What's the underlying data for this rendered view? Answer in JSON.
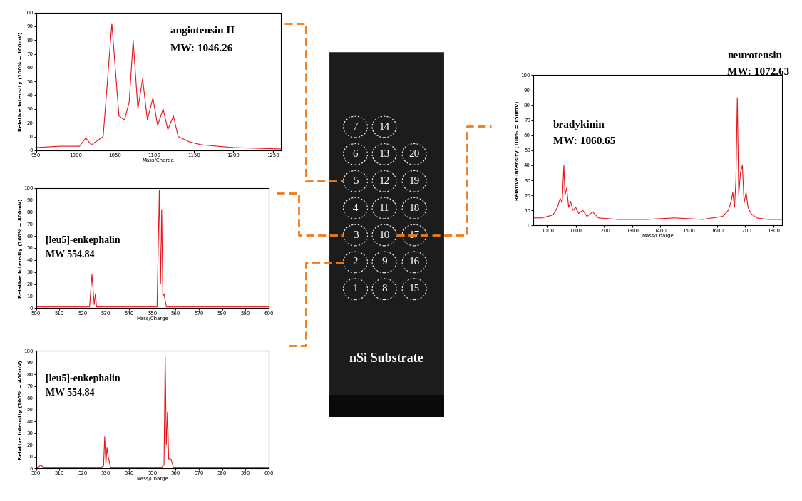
{
  "chart_data": [
    {
      "type": "line",
      "color": "#e8141c",
      "annotations": [
        "angiotensin II",
        "MW: 1046.26"
      ],
      "x_label": "Mass/Charge",
      "y_label": "Relative Intensity (100% = 100mV)",
      "x": [
        950,
        980,
        1005,
        1013,
        1020,
        1035,
        1046,
        1055,
        1062,
        1068,
        1073,
        1079,
        1085,
        1091,
        1098,
        1104,
        1111,
        1117,
        1124,
        1130,
        1145,
        1160,
        1200,
        1260
      ],
      "values": [
        2,
        3,
        3,
        9,
        4,
        10,
        92,
        25,
        22,
        35,
        80,
        30,
        52,
        22,
        38,
        18,
        30,
        15,
        25,
        10,
        6,
        4,
        2,
        1
      ],
      "xlim": [
        950,
        1260
      ],
      "xticks": [
        950,
        1000,
        1050,
        1100,
        1150,
        1200,
        1250
      ],
      "ylim": [
        0,
        100
      ],
      "yticks": [
        0,
        10,
        20,
        30,
        40,
        50,
        60,
        70,
        80,
        90,
        100
      ],
      "grid": false
    },
    {
      "type": "line",
      "color": "#e8141c",
      "annotations": [
        "[leu5]-enkephalin",
        "MW 554.84"
      ],
      "x_label": "Mass/Charge",
      "y_label": "Relative Intensity (100% = 800mV)",
      "x": [
        500,
        523,
        524,
        525,
        525.5,
        526,
        552,
        553,
        553.5,
        554,
        554.5,
        555,
        556,
        600
      ],
      "values": [
        1,
        1,
        28,
        3,
        12,
        1,
        1,
        98,
        20,
        82,
        10,
        12,
        1,
        1
      ],
      "xlim": [
        500,
        600
      ],
      "xticks": [
        500,
        510,
        520,
        530,
        540,
        550,
        560,
        570,
        580,
        590,
        600
      ],
      "ylim": [
        0,
        100
      ],
      "yticks": [
        0,
        10,
        20,
        30,
        40,
        50,
        60,
        70,
        80,
        90,
        100
      ],
      "grid": false
    },
    {
      "type": "line",
      "color": "#e8141c",
      "annotations": [
        "[leu5]-enkephalin",
        "MW 554.84"
      ],
      "x_label": "Mass/Charge",
      "y_label": "Relative Intensity (100% = 400mV)",
      "x": [
        500,
        501,
        502,
        503,
        528,
        529,
        529.5,
        530,
        530.5,
        531,
        532,
        554,
        555,
        555.5,
        556,
        556.5,
        557,
        558,
        559,
        600
      ],
      "values": [
        1,
        1,
        3,
        1,
        1,
        2,
        27,
        4,
        18,
        10,
        1,
        1,
        3,
        95,
        20,
        48,
        8,
        8,
        1,
        1
      ],
      "xlim": [
        500,
        600
      ],
      "xticks": [
        500,
        510,
        520,
        530,
        540,
        550,
        560,
        570,
        580,
        590,
        600
      ],
      "ylim": [
        0,
        100
      ],
      "yticks": [
        0,
        10,
        20,
        30,
        40,
        50,
        60,
        70,
        80,
        90,
        100
      ],
      "grid": false
    },
    {
      "type": "line",
      "color": "#e8141c",
      "annotations": [
        "bradykinin",
        "MW: 1060.65",
        "neurotensin",
        "MW: 1072.63"
      ],
      "x_label": "Mass/Charge",
      "y_label": "Relative Intensity (100% = 150mV)",
      "x": [
        950,
        980,
        1000,
        1020,
        1035,
        1045,
        1052,
        1058,
        1062,
        1068,
        1075,
        1082,
        1090,
        1100,
        1110,
        1125,
        1140,
        1160,
        1180,
        1250,
        1350,
        1450,
        1550,
        1620,
        1640,
        1650,
        1656,
        1662,
        1667,
        1672,
        1677,
        1683,
        1690,
        1696,
        1703,
        1710,
        1720,
        1740,
        1780,
        1830
      ],
      "values": [
        5,
        5,
        6,
        7,
        12,
        18,
        15,
        40,
        20,
        25,
        12,
        16,
        10,
        12,
        8,
        10,
        6,
        9,
        5,
        4,
        4,
        5,
        4,
        6,
        10,
        16,
        22,
        12,
        30,
        85,
        20,
        35,
        40,
        15,
        22,
        12,
        8,
        5,
        4,
        4
      ],
      "xlim": [
        950,
        1830
      ],
      "xticks": [
        1000,
        1100,
        1200,
        1300,
        1400,
        1500,
        1600,
        1700,
        1800
      ],
      "ylim": [
        0,
        100
      ],
      "yticks": [
        0,
        10,
        20,
        30,
        40,
        50,
        60,
        70,
        80,
        90,
        100
      ],
      "grid": false
    }
  ],
  "substrate": {
    "label": "nSi Substrate",
    "columns": [
      [
        "7",
        "6",
        "5",
        "4",
        "3",
        "2",
        "1"
      ],
      [
        "14",
        "13",
        "12",
        "11",
        "10",
        "9",
        "8"
      ],
      [
        "20",
        "19",
        "18",
        "17",
        "16",
        "15"
      ]
    ],
    "linked_spots": [
      "5",
      "3",
      "2",
      "10"
    ]
  }
}
